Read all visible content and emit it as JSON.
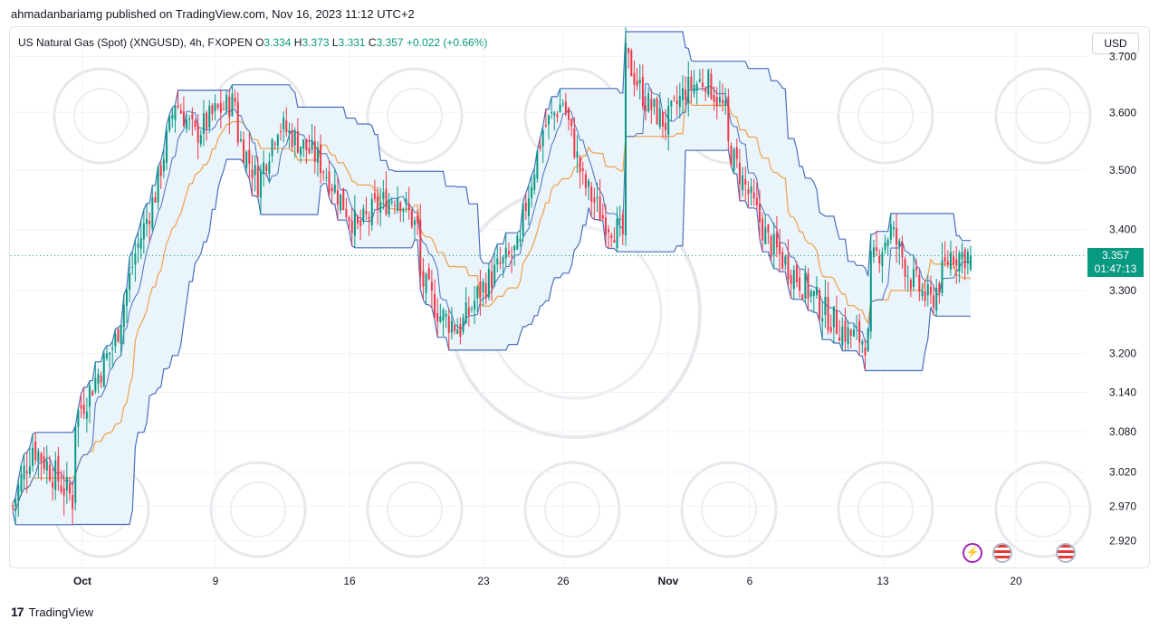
{
  "header": {
    "published_by": "ahmadanbariamg published on TradingView.com, Nov 16, 2023 11:12 UTC+2"
  },
  "legend": {
    "symbol": "US Natural Gas (Spot) (XNGUSD), 4h, FXOPEN",
    "o_label": "O",
    "o_value": "3.334",
    "h_label": "H",
    "h_value": "3.373",
    "l_label": "L",
    "l_value": "3.331",
    "c_label": "C",
    "c_value": "3.357",
    "change": "+0.022",
    "change_pct": "(+0.66%)"
  },
  "currency_label": "USD",
  "last_price": {
    "value": "3.357",
    "countdown": "01:47:13",
    "color": "#089981"
  },
  "colors": {
    "up": "#089981",
    "down": "#f23645",
    "channel_line": "#4a6fbf",
    "channel_fill": "#eaf4fb",
    "midline": "#f0a04b"
  },
  "icons": [
    "lightning-icon",
    "us-flag-icon",
    "us-flag-icon"
  ],
  "footer": {
    "brand": "TradingView"
  },
  "chart_data": {
    "type": "candlestick",
    "instrument": "US Natural Gas (Spot) (XNGUSD)",
    "timeframe": "4h",
    "y_ticks": [
      "3.700",
      "3.600",
      "3.500",
      "3.400",
      "3.300",
      "3.200",
      "3.140",
      "3.080",
      "3.020",
      "2.970",
      "2.920"
    ],
    "x_ticks": [
      "Oct",
      "9",
      "16",
      "23",
      "26",
      "Nov",
      "6",
      "13",
      "20"
    ],
    "approx_close_path": [
      [
        2.97,
        3.06,
        3.02,
        2.98
      ],
      [
        3.1,
        3.16,
        3.22,
        3.36,
        3.46,
        3.62,
        3.56,
        3.6,
        3.62
      ],
      [
        3.56,
        3.48,
        3.58,
        3.55,
        3.52,
        3.46,
        3.4,
        3.44,
        3.46,
        3.4
      ],
      [
        3.32,
        3.26,
        3.24,
        3.3,
        3.34,
        3.37
      ],
      [
        3.42,
        3.57,
        3.62,
        3.48,
        3.42,
        3.39
      ],
      [
        3.7,
        3.62,
        3.58,
        3.64,
        3.66,
        3.6
      ],
      [
        3.54,
        3.46,
        3.38,
        3.34,
        3.3,
        3.26,
        3.23,
        3.22
      ],
      [
        3.34,
        3.4,
        3.32,
        3.28,
        3.36,
        3.357
      ]
    ],
    "series_names": [
      "Price Channel Upper",
      "Price Channel Lower",
      "Midline"
    ],
    "last_value": 3.357
  }
}
